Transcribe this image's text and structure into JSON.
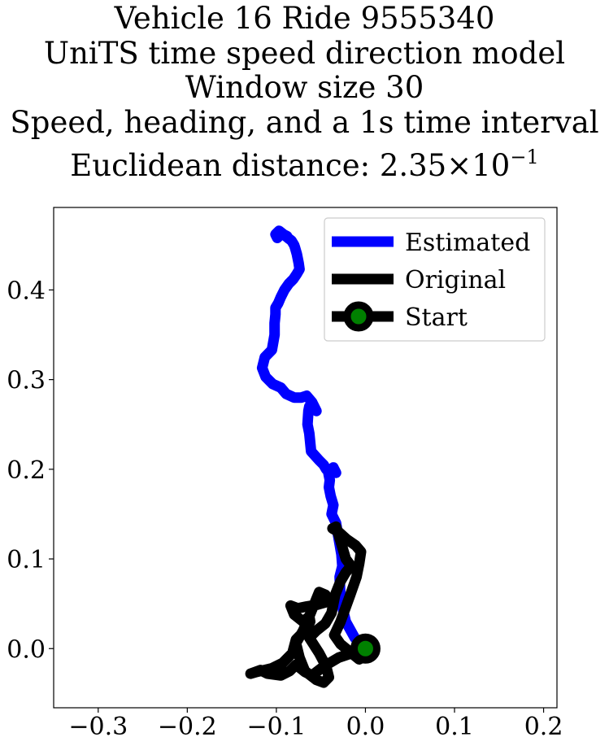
{
  "chart_data": {
    "type": "line",
    "title_lines": [
      "Vehicle 16 Ride 9555340",
      "UniTS time speed direction model",
      "Window size 30",
      "Speed, heading, and a 1s time interval"
    ],
    "title_metric_label": "Euclidean distance: ",
    "title_metric_mantissa": "2.35",
    "title_metric_times": "×",
    "title_metric_base": "10",
    "title_metric_exponent": "−1",
    "xlabel": "",
    "ylabel": "",
    "xlim": [
      -0.35,
      0.215
    ],
    "ylim": [
      -0.066,
      0.492
    ],
    "xticks": [
      -0.3,
      -0.2,
      -0.1,
      0.0,
      0.1,
      0.2
    ],
    "xtick_labels": [
      "−0.3",
      "−0.2",
      "−0.1",
      "0.0",
      "0.1",
      "0.2"
    ],
    "yticks": [
      0.0,
      0.1,
      0.2,
      0.3,
      0.4
    ],
    "ytick_labels": [
      "0.0",
      "0.1",
      "0.2",
      "0.3",
      "0.4"
    ],
    "grid": false,
    "legend_position": "top-right",
    "series": [
      {
        "name": "Estimated",
        "color": "#0000ff",
        "x": [
          0.0,
          -0.012,
          -0.022,
          -0.028,
          -0.029,
          -0.026,
          -0.027,
          -0.031,
          -0.033,
          -0.038,
          -0.036,
          -0.039,
          -0.041,
          -0.04,
          -0.042,
          -0.037,
          -0.033,
          -0.036,
          -0.037,
          -0.044,
          -0.047,
          -0.052,
          -0.061,
          -0.063,
          -0.065,
          -0.064,
          -0.063,
          -0.06,
          -0.058,
          -0.055,
          -0.06,
          -0.066,
          -0.072,
          -0.08,
          -0.089,
          -0.095,
          -0.104,
          -0.112,
          -0.116,
          -0.113,
          -0.105,
          -0.102,
          -0.102,
          -0.101,
          -0.101,
          -0.098,
          -0.095,
          -0.091,
          -0.086,
          -0.083,
          -0.081,
          -0.077,
          -0.074,
          -0.075,
          -0.077,
          -0.079,
          -0.08,
          -0.083,
          -0.087,
          -0.092,
          -0.097,
          -0.101,
          -0.099,
          -0.094,
          -0.088
        ],
        "y": [
          0.0,
          0.012,
          0.03,
          0.055,
          0.08,
          0.092,
          0.105,
          0.128,
          0.14,
          0.15,
          0.16,
          0.17,
          0.18,
          0.188,
          0.198,
          0.2,
          0.196,
          0.202,
          0.2,
          0.2,
          0.205,
          0.21,
          0.22,
          0.24,
          0.25,
          0.265,
          0.27,
          0.268,
          0.27,
          0.265,
          0.275,
          0.282,
          0.28,
          0.28,
          0.284,
          0.291,
          0.295,
          0.303,
          0.313,
          0.325,
          0.333,
          0.35,
          0.363,
          0.373,
          0.38,
          0.385,
          0.392,
          0.4,
          0.407,
          0.41,
          0.412,
          0.418,
          0.423,
          0.43,
          0.44,
          0.447,
          0.45,
          0.455,
          0.458,
          0.462,
          0.466,
          0.462,
          0.458,
          0.463,
          0.46
        ]
      },
      {
        "name": "Original",
        "color": "#000000",
        "x": [
          0.0,
          -0.012,
          -0.03,
          -0.047,
          -0.06,
          -0.068,
          -0.078,
          -0.085,
          -0.095,
          -0.11,
          -0.118,
          -0.129,
          -0.122,
          -0.105,
          -0.093,
          -0.082,
          -0.078,
          -0.066,
          -0.062,
          -0.063,
          -0.07,
          -0.08,
          -0.084,
          -0.076,
          -0.066,
          -0.054,
          -0.043,
          -0.045,
          -0.052,
          -0.063,
          -0.07,
          -0.078,
          -0.074,
          -0.068,
          -0.055,
          -0.047,
          -0.041,
          -0.044,
          -0.052,
          -0.063,
          -0.055,
          -0.045,
          -0.038,
          -0.034,
          -0.028,
          -0.022,
          -0.016,
          -0.022,
          -0.028,
          -0.033,
          -0.037,
          -0.03,
          -0.021,
          -0.011,
          -0.005,
          -0.007,
          -0.01,
          -0.017,
          -0.028,
          -0.035,
          -0.028,
          -0.018,
          -0.012,
          -0.007,
          0.0
        ],
        "y": [
          0.0,
          -0.004,
          -0.01,
          -0.02,
          -0.03,
          -0.026,
          -0.018,
          -0.025,
          -0.03,
          -0.028,
          -0.024,
          -0.028,
          -0.026,
          -0.022,
          -0.016,
          -0.005,
          0.01,
          0.022,
          0.03,
          0.036,
          0.03,
          0.038,
          0.048,
          0.045,
          0.047,
          0.049,
          0.052,
          0.06,
          0.063,
          0.036,
          0.02,
          0.006,
          -0.01,
          -0.025,
          -0.035,
          -0.038,
          -0.032,
          -0.02,
          -0.005,
          0.012,
          0.02,
          0.028,
          0.04,
          0.06,
          0.075,
          0.085,
          0.092,
          0.1,
          0.12,
          0.136,
          0.134,
          0.13,
          0.122,
          0.115,
          0.108,
          0.095,
          0.08,
          0.06,
          0.03,
          0.015,
          0.005,
          -0.003,
          -0.008,
          -0.012,
          0.0
        ]
      }
    ],
    "start_point": {
      "name": "Start",
      "x": 0.0,
      "y": 0.0,
      "line_color": "#000000",
      "marker_fill": "#008000",
      "marker_edge": "#000000"
    },
    "legend": [
      {
        "label": "Estimated",
        "kind": "line",
        "color": "#0000ff"
      },
      {
        "label": "Original",
        "kind": "line",
        "color": "#000000"
      },
      {
        "label": "Start",
        "kind": "marker",
        "color": "#000000",
        "marker_fill": "#008000"
      }
    ]
  }
}
